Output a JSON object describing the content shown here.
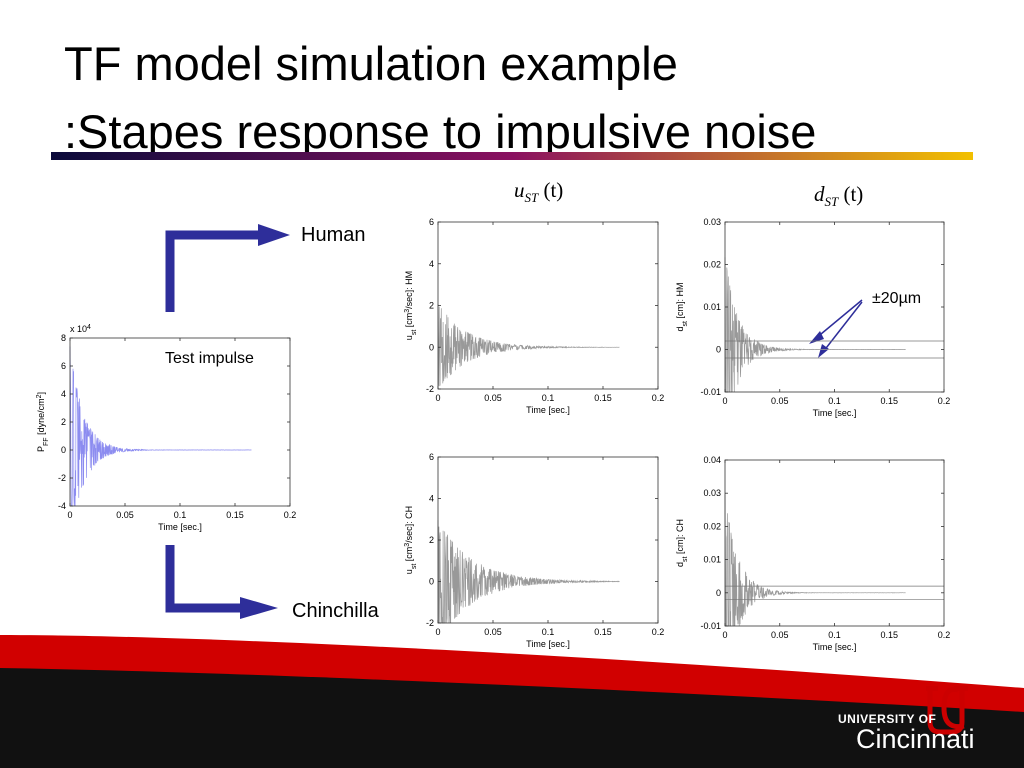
{
  "slide": {
    "title_line1": "TF model simulation example",
    "title_line2": ":Stapes response to impulsive noise",
    "label_human": "Human",
    "label_chinchilla": "Chinchilla",
    "label_test_impulse": "Test impulse",
    "label_u_main": "u",
    "label_u_sub": "ST",
    "label_d_main": "d",
    "label_d_sub": "ST",
    "label_t": "(t)",
    "annotation": "±20µm",
    "logo_line1": "UNIVERSITY OF",
    "logo_line2": "Cincinnati"
  },
  "colors": {
    "rule_start": "#0a0a3a",
    "rule_mid": "#8a1060",
    "rule_end": "#f2c000",
    "arrow": "#2e2e9a",
    "impulse": "#8c8cf0",
    "trace": "#999999",
    "footer_red": "#d10000",
    "footer_black": "#111111"
  },
  "chart_data": [
    {
      "type": "line",
      "id": "input",
      "xlabel": "Time [sec.]",
      "ylabel": "P_FF [dyne/cm^2]",
      "y_multiplier": "x 10^4",
      "xlim": [
        0,
        0.2
      ],
      "ylim": [
        -4,
        8
      ],
      "xticks": [
        "0",
        "0.05",
        "0.1",
        "0.15",
        "0.2"
      ],
      "yticks": [
        "-4",
        "-2",
        "0",
        "2",
        "4",
        "6",
        "8"
      ],
      "ytick_values": [
        -4,
        -2,
        0,
        2,
        4,
        6,
        8
      ],
      "signal": {
        "peak": 7.5,
        "decay": 0.012,
        "freq": 330,
        "end": 0.165
      }
    },
    {
      "type": "line",
      "id": "u_hm",
      "xlabel": "Time [sec.]",
      "ylabel": "u_st [cm^3/sec]: HM",
      "xlim": [
        0,
        0.2
      ],
      "ylim": [
        -2,
        6
      ],
      "xticks": [
        "0",
        "0.05",
        "0.1",
        "0.15",
        "0.2"
      ],
      "yticks": [
        "-2",
        "0",
        "2",
        "4",
        "6"
      ],
      "ytick_values": [
        -2,
        0,
        2,
        4,
        6
      ],
      "signal": {
        "peak": 2.1,
        "decay": 0.025,
        "freq": 900,
        "end": 0.165
      }
    },
    {
      "type": "line",
      "id": "d_hm",
      "xlabel": "Time [sec.]",
      "ylabel": "d_st [cm]: HM",
      "xlim": [
        0,
        0.2
      ],
      "ylim": [
        -0.01,
        0.03
      ],
      "xticks": [
        "0",
        "0.05",
        "0.1",
        "0.15",
        "0.2"
      ],
      "yticks": [
        "-0.01",
        "0",
        "0.01",
        "0.02",
        "0.03"
      ],
      "ytick_values": [
        -0.01,
        0,
        0.01,
        0.02,
        0.03
      ],
      "band": [
        -0.002,
        0.002
      ],
      "signal": {
        "peak": 0.022,
        "decay": 0.012,
        "freq": 600,
        "end": 0.165
      }
    },
    {
      "type": "line",
      "id": "u_ch",
      "xlabel": "Time [sec.]",
      "ylabel": "u_st [cm^3/sec]: CH",
      "xlim": [
        0,
        0.2
      ],
      "ylim": [
        -2,
        6
      ],
      "xticks": [
        "0",
        "0.05",
        "0.1",
        "0.15",
        "0.2"
      ],
      "yticks": [
        "-2",
        "0",
        "2",
        "4",
        "6"
      ],
      "ytick_values": [
        -2,
        0,
        2,
        4,
        6
      ],
      "signal": {
        "peak": 3.0,
        "decay": 0.03,
        "freq": 1100,
        "end": 0.165
      }
    },
    {
      "type": "line",
      "id": "d_ch",
      "xlabel": "Time [sec.]",
      "ylabel": "d_st [cm]: CH",
      "xlim": [
        0,
        0.2
      ],
      "ylim": [
        -0.01,
        0.04
      ],
      "xticks": [
        "0",
        "0.05",
        "0.1",
        "0.15",
        "0.2"
      ],
      "yticks": [
        "-0.01",
        "0",
        "0.01",
        "0.02",
        "0.03",
        "0.04"
      ],
      "ytick_values": [
        -0.01,
        0,
        0.01,
        0.02,
        0.03,
        0.04
      ],
      "band": [
        -0.002,
        0.002
      ],
      "signal": {
        "peak": 0.03,
        "decay": 0.012,
        "freq": 500,
        "end": 0.165
      }
    }
  ]
}
